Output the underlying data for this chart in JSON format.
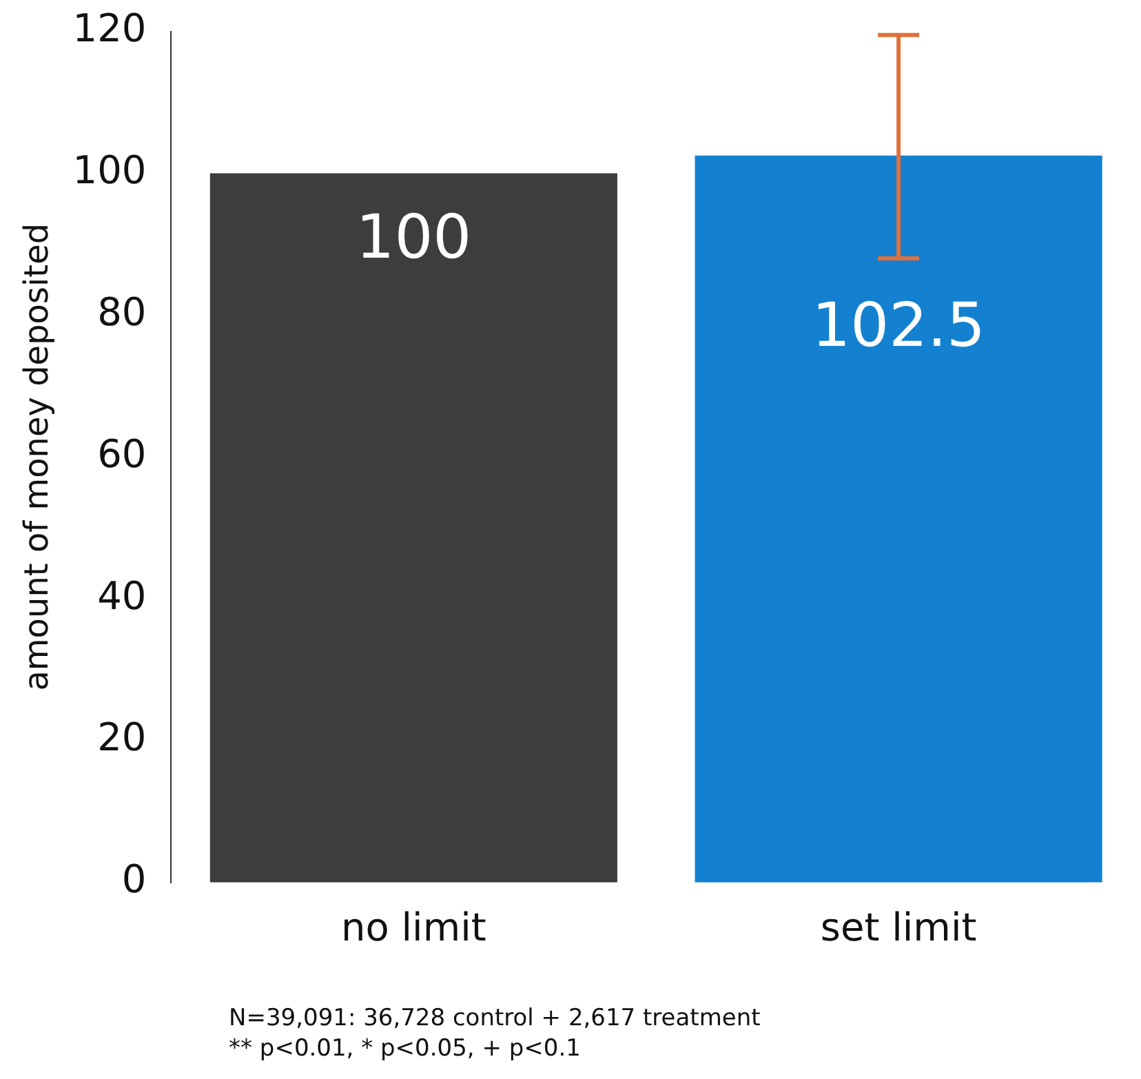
{
  "chart_data": {
    "type": "bar",
    "ylabel": "amount of money deposited",
    "categories": [
      "no limit",
      "set limit"
    ],
    "values": [
      100,
      102.5
    ],
    "colors": [
      "#3d3d40",
      "#1380d0"
    ],
    "errors": [
      null,
      [
        88,
        119.5
      ]
    ],
    "data_labels": true,
    "ylim": [
      0,
      120
    ],
    "yticks": [
      0,
      20,
      40,
      60,
      80,
      100,
      120
    ],
    "grid": false,
    "legend": false,
    "annotations": [
      "N=39,091: 36,728 control + 2,617 treatment",
      "** p<0.01, * p<0.05, + p<0.1"
    ]
  }
}
